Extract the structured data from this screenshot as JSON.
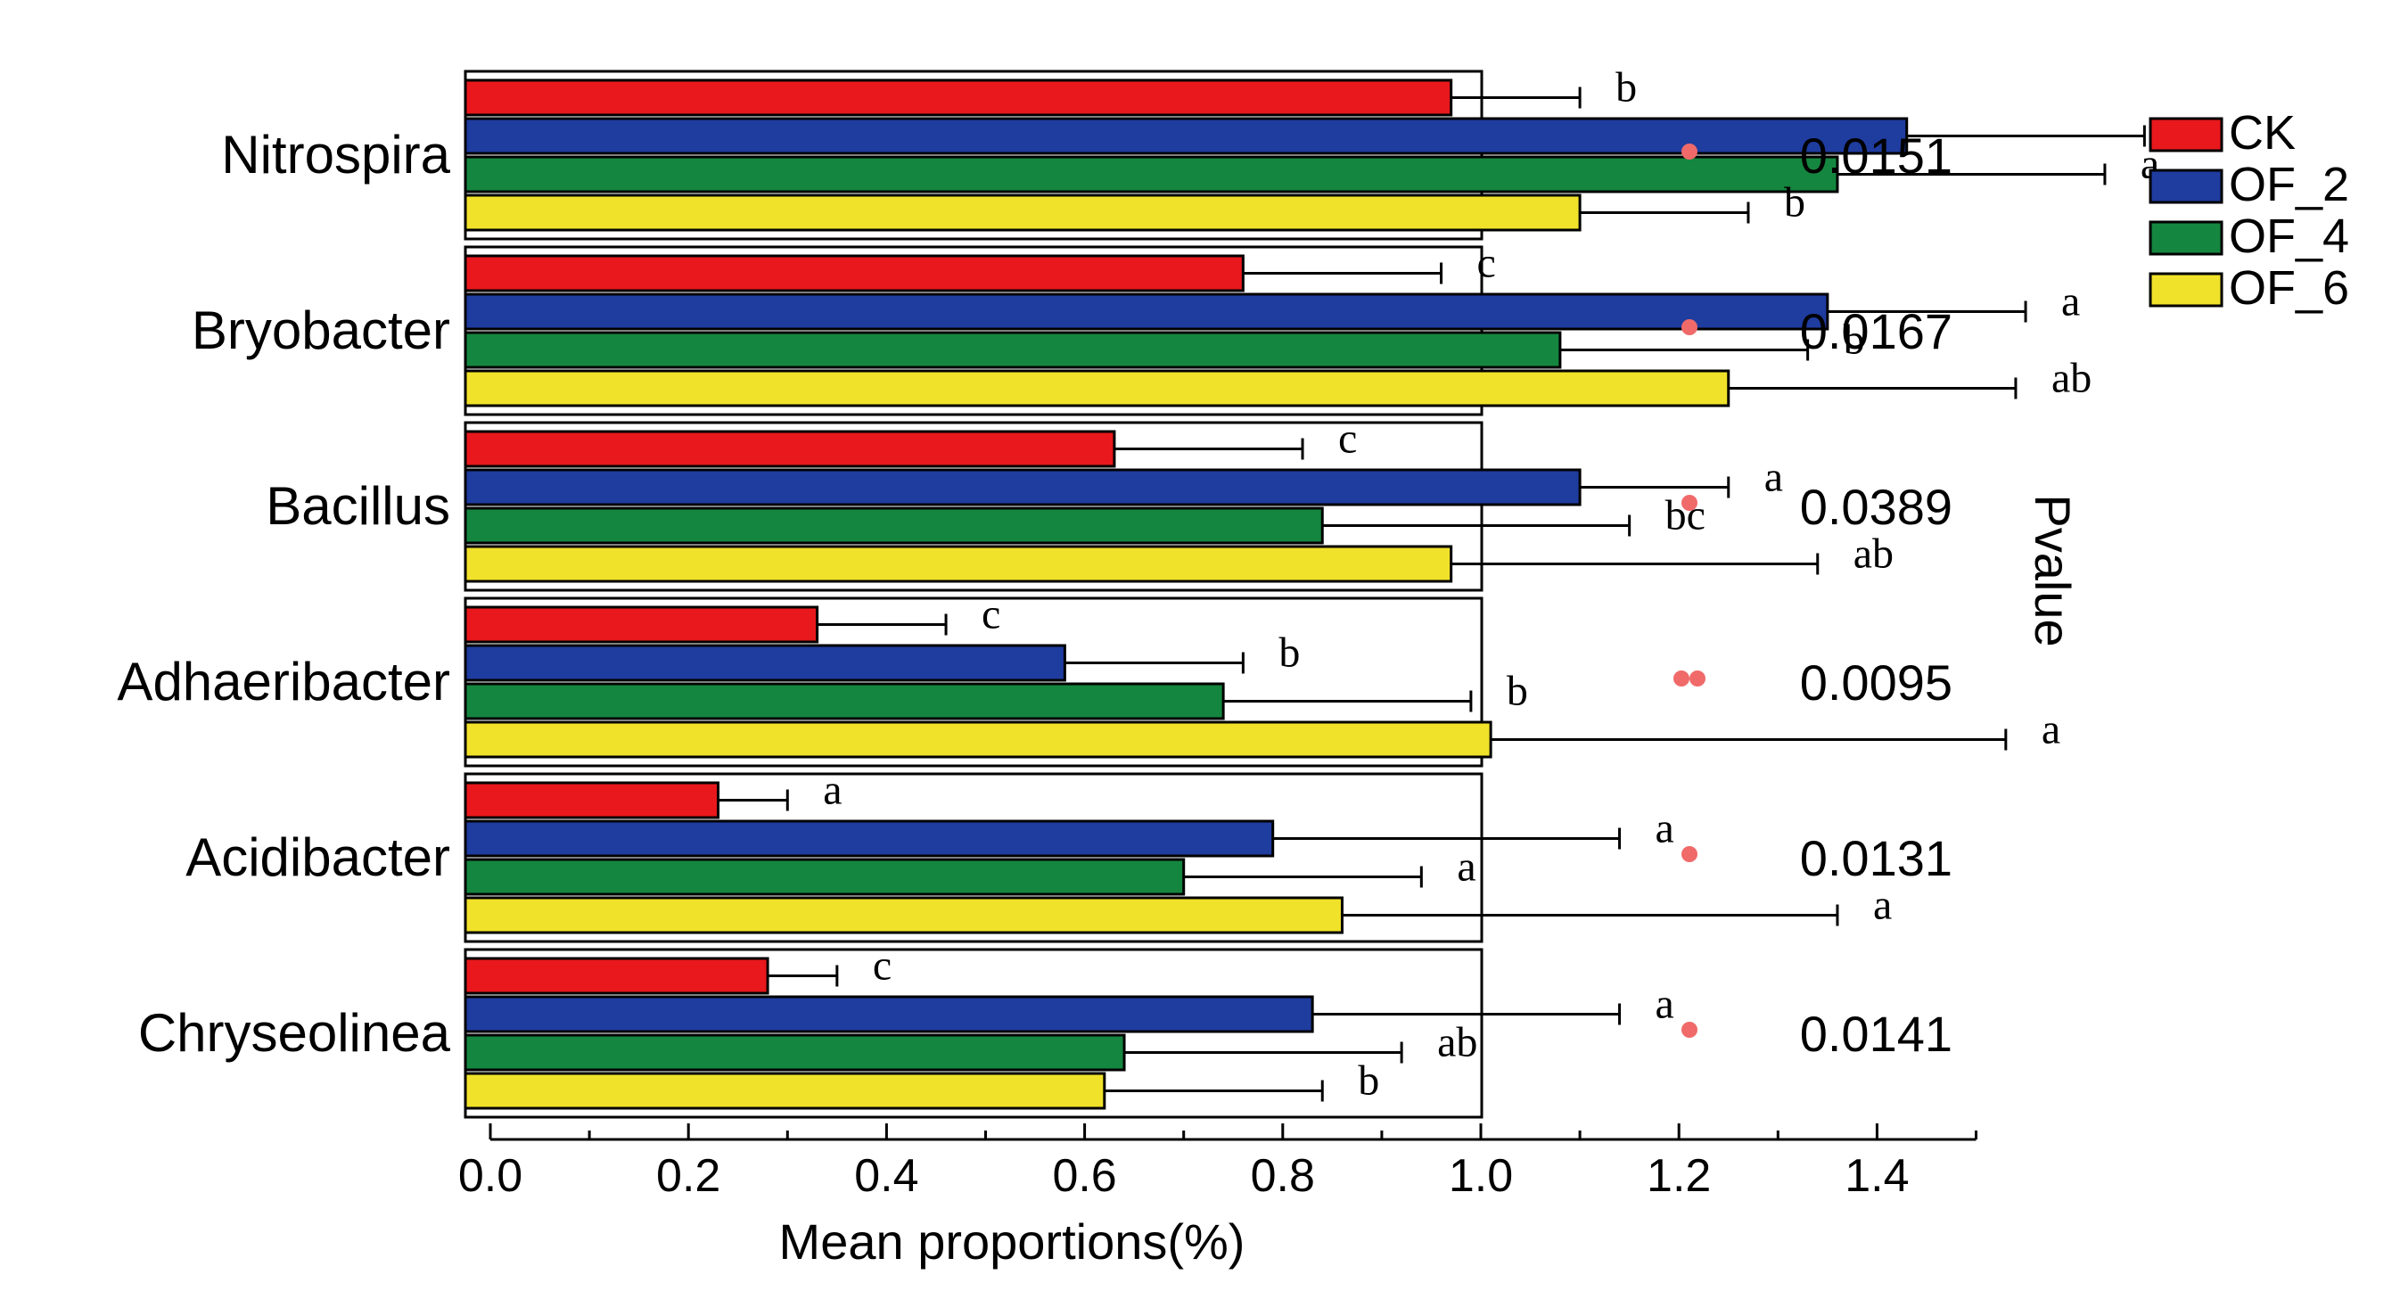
{
  "chart_data": {
    "type": "bar",
    "orientation": "horizontal",
    "xlabel": "Mean proportions(%)",
    "pvalue_label": "Pvalue",
    "xlim": [
      0.0,
      1.5
    ],
    "xticks": [
      "0.0",
      "0.2",
      "0.4",
      "0.6",
      "0.8",
      "1.0",
      "1.2",
      "1.4"
    ],
    "legend_position": "top-right",
    "categories": [
      "Nitrospira",
      "Bryobacter",
      "Bacillus",
      "Adhaeribacter",
      "Acidibacter",
      "Chryseolinea"
    ],
    "series": [
      {
        "name": "CK",
        "color": "#e8181c",
        "values": [
          0.97,
          0.76,
          0.63,
          0.33,
          0.23,
          0.28
        ],
        "errors": [
          0.13,
          0.2,
          0.19,
          0.13,
          0.07,
          0.07
        ],
        "letters": [
          "b",
          "c",
          "c",
          "c",
          "a",
          "c"
        ]
      },
      {
        "name": "OF_2",
        "color": "#1f3c9f",
        "values": [
          1.43,
          1.35,
          1.1,
          0.58,
          0.79,
          0.83
        ],
        "errors": [
          0.24,
          0.2,
          0.15,
          0.18,
          0.35,
          0.31
        ],
        "letters": [
          "a",
          "a",
          "a",
          "b",
          "a",
          "a"
        ]
      },
      {
        "name": "OF_4",
        "color": "#15863f",
        "values": [
          1.36,
          1.08,
          0.84,
          0.74,
          0.7,
          0.64
        ],
        "errors": [
          0.27,
          0.25,
          0.31,
          0.25,
          0.24,
          0.28
        ],
        "letters": [
          "a",
          "b",
          "bc",
          "b",
          "a",
          "ab"
        ]
      },
      {
        "name": "OF_6",
        "color": "#f0e22a",
        "values": [
          1.1,
          1.25,
          0.97,
          1.01,
          0.86,
          0.62
        ],
        "errors": [
          0.17,
          0.29,
          0.37,
          0.52,
          0.5,
          0.22
        ],
        "letters": [
          "b",
          "ab",
          "ab",
          "a",
          "a",
          "b"
        ]
      }
    ],
    "significance": [
      "*",
      "*",
      "*",
      "**",
      "*",
      "*"
    ],
    "significance_color": "#f06a6a",
    "pvalues": [
      "0.0151",
      "0.0167",
      "0.0389",
      "0.0095",
      "0.0131",
      "0.0141"
    ]
  }
}
